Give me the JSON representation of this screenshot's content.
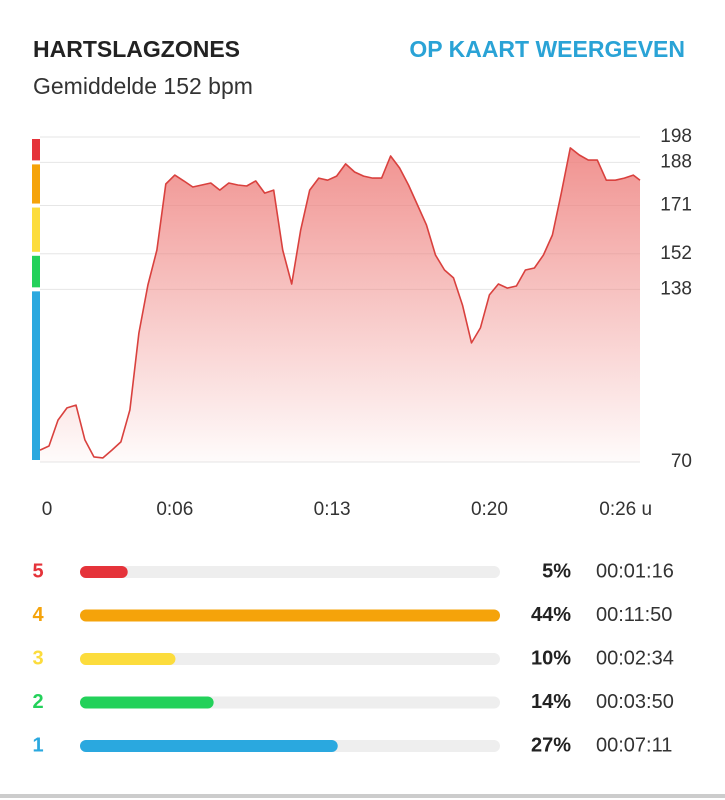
{
  "header": {
    "title": "HARTSLAGZONES",
    "link": "OP KAART WEERGEVEN",
    "subtitle": "Gemiddelde 152 bpm"
  },
  "chart_data": {
    "type": "area",
    "x": [
      0,
      0.4,
      0.8,
      1.2,
      1.6,
      2,
      2.4,
      2.8,
      3.2,
      3.6,
      4,
      4.4,
      4.8,
      5.2,
      5.6,
      6,
      6.4,
      6.8,
      7.2,
      7.6,
      8,
      8.4,
      8.8,
      9.2,
      9.6,
      10,
      10.4,
      10.8,
      11.2,
      11.6,
      12,
      12.4,
      12.8,
      13.2,
      13.6,
      14,
      14.4,
      14.8,
      15.2,
      15.6,
      16,
      16.4,
      16.8,
      17.2,
      17.6,
      18,
      18.4,
      18.8,
      19.2,
      19.6,
      20,
      20.4,
      20.8,
      21.2,
      21.6,
      22,
      22.4,
      22.8,
      23.2,
      23.6,
      24,
      24.4,
      24.8,
      25.2,
      25.6,
      26,
      26.4,
      26.7
    ],
    "values": [
      74.7,
      76.3,
      86.5,
      91.3,
      92.4,
      78.7,
      72.0,
      71.6,
      74.7,
      77.9,
      90.5,
      120.8,
      139.7,
      153.5,
      179.5,
      183.0,
      180.7,
      178.3,
      179.1,
      179.9,
      177.1,
      179.9,
      179.1,
      178.7,
      180.7,
      175.9,
      177.1,
      153.5,
      140.1,
      161.4,
      177.1,
      181.8,
      181.0,
      182.6,
      187.4,
      184.2,
      182.6,
      181.8,
      181.8,
      190.5,
      185.8,
      179.1,
      171.2,
      163.3,
      151.5,
      145.6,
      142.5,
      131.8,
      116.9,
      122.8,
      135.8,
      140.1,
      138.5,
      139.3,
      145.6,
      146.4,
      151.5,
      159.4,
      175.9,
      193.7,
      190.9,
      188.9,
      188.9,
      181.0,
      181.0,
      181.8,
      183.0,
      181.0
    ],
    "color": "#d9413e",
    "xlim": [
      0,
      26.7
    ],
    "xticks": [
      {
        "value": 0,
        "label": "0"
      },
      {
        "value": 6,
        "label": "0:06"
      },
      {
        "value": 13,
        "label": "0:13"
      },
      {
        "value": 20,
        "label": "0:20"
      },
      {
        "value": 26,
        "label": "0:26 u"
      }
    ],
    "ylim": [
      70,
      198
    ],
    "yticks": [
      70,
      138,
      152,
      171,
      188,
      198
    ],
    "grid": true
  },
  "zones": {
    "labels": [
      "5",
      "4",
      "3",
      "2",
      "1"
    ],
    "colors": [
      "#e5333a",
      "#f5a30a",
      "#fcdc3c",
      "#23d15a",
      "#2aa8df"
    ],
    "values": [
      5,
      44,
      10,
      14,
      27
    ],
    "value_labels": [
      "5%",
      "44%",
      "10%",
      "14%",
      "27%"
    ],
    "durations": [
      "00:01:16",
      "00:11:50",
      "00:02:34",
      "00:03:50",
      "00:07:11"
    ]
  }
}
